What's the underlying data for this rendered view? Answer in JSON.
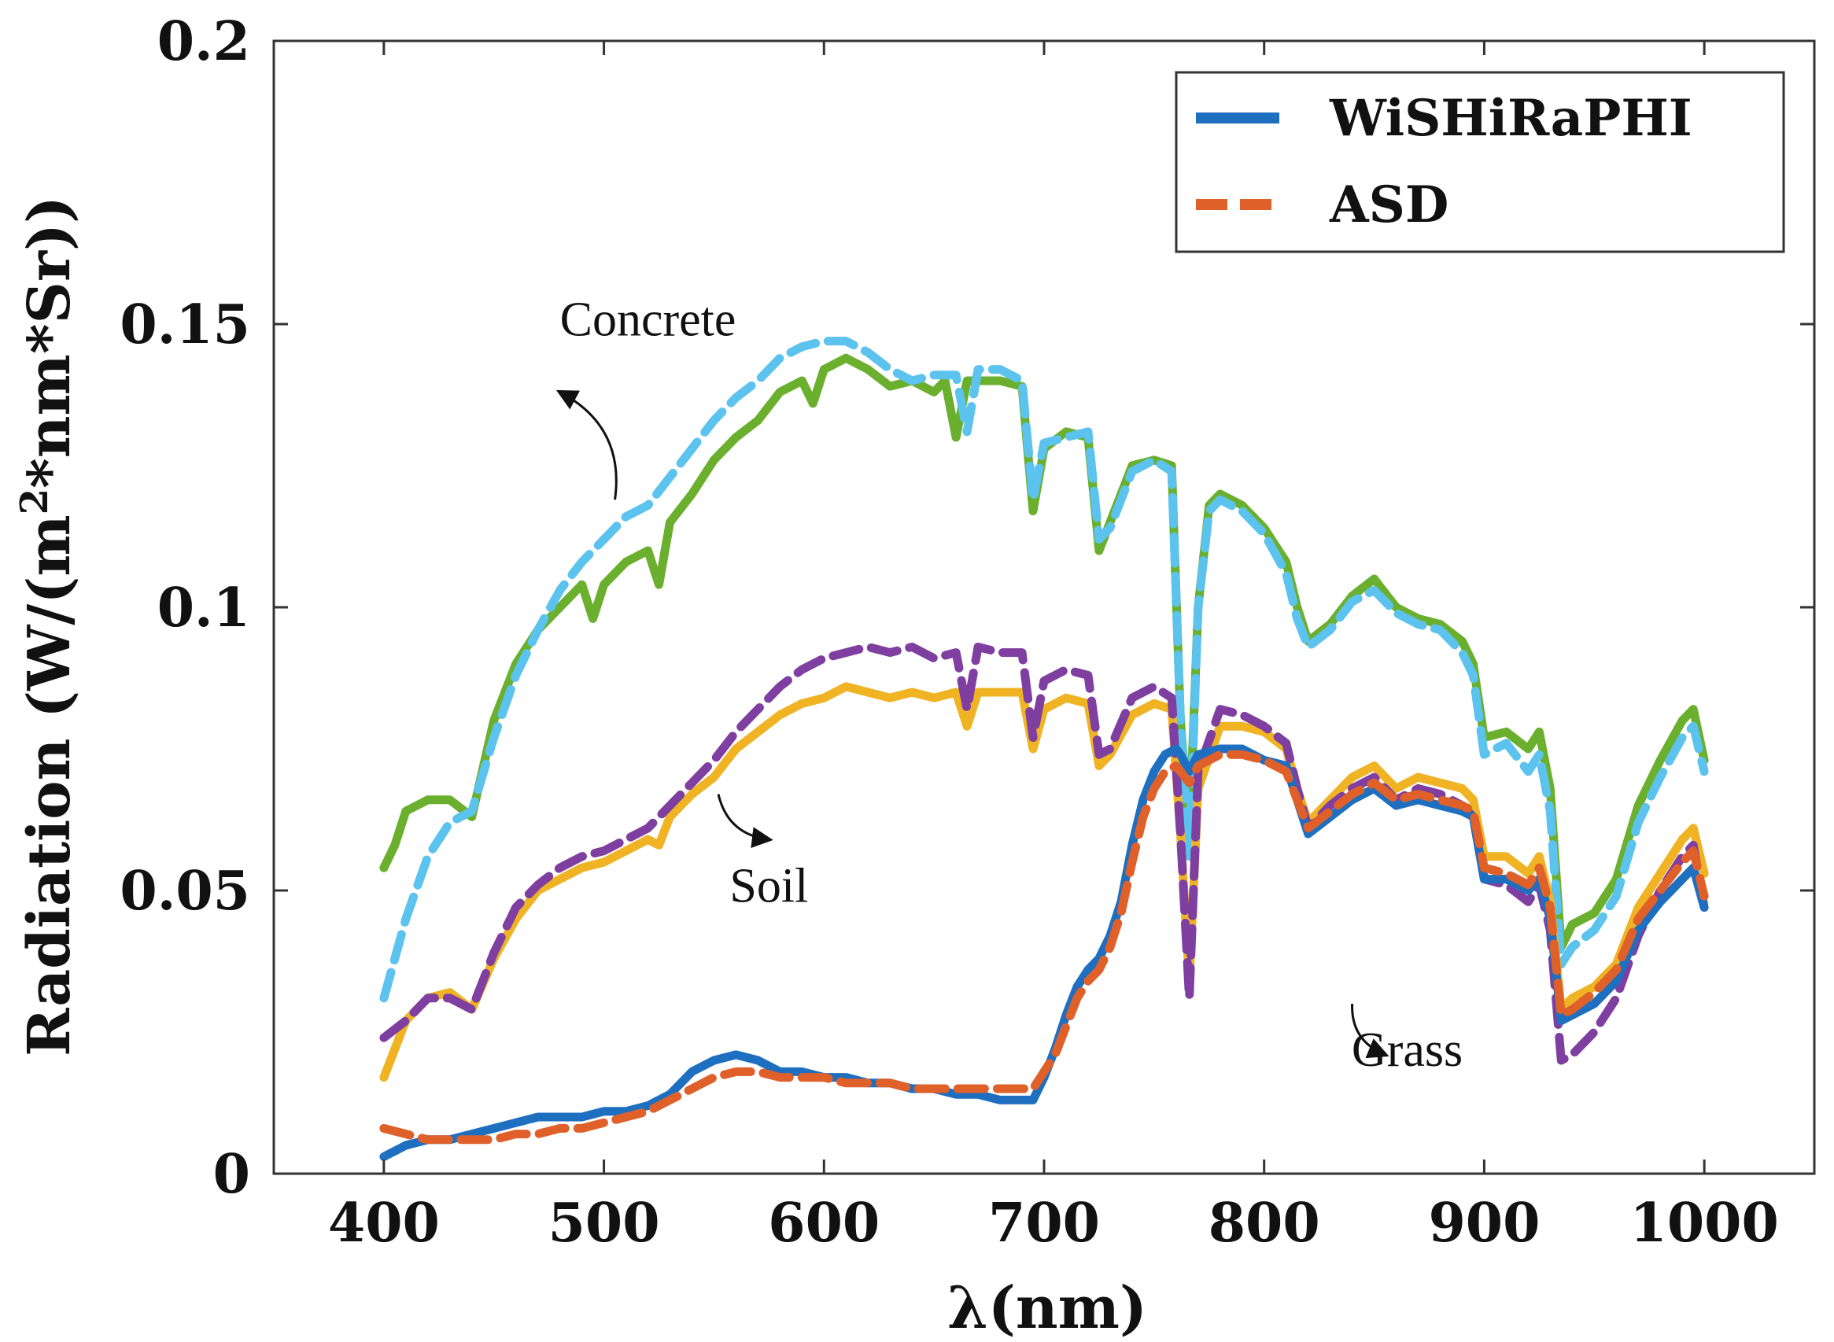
{
  "chart_data": {
    "type": "line",
    "xlabel": "λ(nm)",
    "ylabel_parts": [
      "Radiation (W/(m",
      "2",
      "*nm*Sr))"
    ],
    "xlim": [
      350,
      1050
    ],
    "ylim": [
      0,
      0.2
    ],
    "xticks": [
      400,
      500,
      600,
      700,
      800,
      900,
      1000
    ],
    "yticks": [
      0,
      0.05,
      0.1,
      0.15,
      0.2
    ],
    "ytick_labels": [
      "0",
      "0.05",
      "0.1",
      "0.15",
      "0.2"
    ],
    "grid": false,
    "legend_position": "top-right",
    "legend": [
      {
        "label": "WiSHiRaPHI",
        "style": "solid",
        "color": "#1f6fc0"
      },
      {
        "label": "ASD",
        "style": "dashed",
        "color": "#e0602a"
      }
    ],
    "annotations": [
      {
        "text": "Concrete",
        "x": 520,
        "y": 0.148,
        "arrow_tail": [
          505,
          0.119
        ],
        "arrow_head": [
          480,
          0.138
        ]
      },
      {
        "text": "Soil",
        "x": 575,
        "y": 0.048,
        "arrow_tail": [
          552,
          0.067
        ],
        "arrow_head": [
          575,
          0.059
        ]
      },
      {
        "text": "Grass",
        "x": 865,
        "y": 0.019,
        "arrow_tail": [
          840,
          0.03
        ],
        "arrow_head": [
          855,
          0.021
        ]
      }
    ],
    "series": [
      {
        "name": "WiSHiRaPHI",
        "material": "Concrete",
        "style": "solid",
        "color": "#6ab02e",
        "x": [
          400,
          405,
          410,
          415,
          420,
          430,
          440,
          450,
          460,
          470,
          480,
          490,
          495,
          500,
          510,
          520,
          525,
          530,
          540,
          550,
          560,
          570,
          580,
          590,
          595,
          600,
          610,
          620,
          630,
          640,
          650,
          655,
          660,
          665,
          670,
          680,
          690,
          695,
          700,
          710,
          720,
          725,
          730,
          740,
          750,
          758,
          762,
          766,
          770,
          775,
          780,
          790,
          800,
          810,
          815,
          820,
          830,
          840,
          850,
          860,
          870,
          880,
          890,
          895,
          900,
          910,
          920,
          925,
          930,
          935,
          940,
          950,
          960,
          970,
          980,
          990,
          995,
          1000
        ],
        "y": [
          0.054,
          0.058,
          0.064,
          0.065,
          0.066,
          0.066,
          0.063,
          0.08,
          0.09,
          0.096,
          0.1,
          0.104,
          0.098,
          0.104,
          0.108,
          0.11,
          0.104,
          0.115,
          0.12,
          0.126,
          0.13,
          0.133,
          0.138,
          0.14,
          0.136,
          0.142,
          0.144,
          0.142,
          0.139,
          0.14,
          0.138,
          0.14,
          0.13,
          0.14,
          0.14,
          0.14,
          0.139,
          0.117,
          0.128,
          0.131,
          0.13,
          0.11,
          0.115,
          0.125,
          0.126,
          0.125,
          0.08,
          0.06,
          0.1,
          0.118,
          0.12,
          0.118,
          0.114,
          0.108,
          0.1,
          0.094,
          0.097,
          0.102,
          0.105,
          0.1,
          0.098,
          0.097,
          0.094,
          0.09,
          0.077,
          0.078,
          0.075,
          0.078,
          0.068,
          0.04,
          0.044,
          0.046,
          0.052,
          0.065,
          0.073,
          0.08,
          0.082,
          0.073
        ]
      },
      {
        "name": "ASD",
        "material": "Concrete",
        "style": "dashed",
        "color": "#5bc3ee",
        "x": [
          400,
          410,
          420,
          430,
          440,
          450,
          460,
          470,
          480,
          490,
          500,
          510,
          520,
          530,
          540,
          550,
          560,
          570,
          580,
          590,
          600,
          610,
          620,
          630,
          640,
          650,
          660,
          665,
          670,
          680,
          690,
          695,
          700,
          710,
          720,
          725,
          730,
          740,
          750,
          758,
          762,
          766,
          770,
          775,
          780,
          790,
          800,
          810,
          815,
          820,
          830,
          840,
          850,
          860,
          870,
          880,
          890,
          895,
          900,
          910,
          920,
          925,
          930,
          935,
          940,
          950,
          960,
          970,
          980,
          990,
          995,
          1000
        ],
        "y": [
          0.031,
          0.045,
          0.056,
          0.062,
          0.064,
          0.077,
          0.088,
          0.096,
          0.103,
          0.108,
          0.112,
          0.116,
          0.118,
          0.123,
          0.128,
          0.133,
          0.137,
          0.14,
          0.144,
          0.146,
          0.147,
          0.147,
          0.145,
          0.142,
          0.14,
          0.141,
          0.141,
          0.131,
          0.142,
          0.142,
          0.14,
          0.119,
          0.129,
          0.13,
          0.131,
          0.112,
          0.114,
          0.124,
          0.126,
          0.124,
          0.08,
          0.056,
          0.1,
          0.117,
          0.119,
          0.117,
          0.113,
          0.106,
          0.098,
          0.093,
          0.096,
          0.101,
          0.103,
          0.099,
          0.097,
          0.096,
          0.092,
          0.088,
          0.074,
          0.076,
          0.071,
          0.074,
          0.064,
          0.037,
          0.04,
          0.043,
          0.049,
          0.062,
          0.07,
          0.077,
          0.079,
          0.071
        ]
      },
      {
        "name": "WiSHiRaPHI",
        "material": "Soil",
        "style": "solid",
        "color": "#f0b323",
        "x": [
          400,
          405,
          410,
          420,
          430,
          440,
          450,
          460,
          470,
          480,
          490,
          500,
          510,
          520,
          525,
          530,
          540,
          550,
          560,
          570,
          580,
          590,
          600,
          610,
          620,
          630,
          640,
          650,
          660,
          665,
          670,
          680,
          690,
          695,
          700,
          710,
          720,
          725,
          730,
          740,
          750,
          758,
          762,
          766,
          770,
          780,
          790,
          800,
          810,
          815,
          820,
          830,
          840,
          850,
          860,
          870,
          880,
          890,
          895,
          900,
          910,
          920,
          925,
          930,
          935,
          940,
          950,
          960,
          970,
          980,
          990,
          995,
          1000
        ],
        "y": [
          0.017,
          0.022,
          0.027,
          0.031,
          0.032,
          0.029,
          0.038,
          0.045,
          0.05,
          0.052,
          0.054,
          0.055,
          0.057,
          0.059,
          0.058,
          0.063,
          0.067,
          0.07,
          0.075,
          0.078,
          0.081,
          0.083,
          0.084,
          0.086,
          0.085,
          0.084,
          0.085,
          0.084,
          0.085,
          0.079,
          0.085,
          0.085,
          0.085,
          0.075,
          0.082,
          0.084,
          0.083,
          0.072,
          0.074,
          0.081,
          0.083,
          0.082,
          0.06,
          0.034,
          0.068,
          0.079,
          0.079,
          0.078,
          0.075,
          0.068,
          0.062,
          0.066,
          0.07,
          0.072,
          0.068,
          0.07,
          0.069,
          0.068,
          0.066,
          0.056,
          0.056,
          0.053,
          0.056,
          0.048,
          0.029,
          0.031,
          0.033,
          0.037,
          0.047,
          0.053,
          0.059,
          0.061,
          0.053
        ]
      },
      {
        "name": "ASD",
        "material": "Soil",
        "style": "dashed",
        "color": "#7f3fa0",
        "x": [
          400,
          410,
          420,
          430,
          440,
          450,
          460,
          470,
          480,
          490,
          500,
          510,
          520,
          530,
          540,
          550,
          560,
          570,
          580,
          590,
          600,
          610,
          620,
          630,
          640,
          650,
          660,
          665,
          670,
          680,
          690,
          695,
          700,
          710,
          720,
          725,
          730,
          740,
          750,
          758,
          762,
          766,
          770,
          780,
          790,
          800,
          810,
          815,
          820,
          830,
          840,
          850,
          860,
          870,
          880,
          890,
          895,
          900,
          910,
          920,
          925,
          930,
          935,
          940,
          950,
          960,
          970,
          980,
          990,
          995,
          1000
        ],
        "y": [
          0.024,
          0.027,
          0.031,
          0.031,
          0.029,
          0.039,
          0.047,
          0.051,
          0.054,
          0.056,
          0.057,
          0.059,
          0.061,
          0.065,
          0.069,
          0.073,
          0.078,
          0.082,
          0.086,
          0.089,
          0.091,
          0.092,
          0.093,
          0.092,
          0.093,
          0.091,
          0.092,
          0.082,
          0.093,
          0.092,
          0.092,
          0.077,
          0.087,
          0.089,
          0.088,
          0.074,
          0.075,
          0.084,
          0.086,
          0.084,
          0.06,
          0.031,
          0.071,
          0.082,
          0.081,
          0.079,
          0.076,
          0.068,
          0.061,
          0.065,
          0.068,
          0.07,
          0.066,
          0.068,
          0.067,
          0.065,
          0.063,
          0.052,
          0.051,
          0.048,
          0.051,
          0.043,
          0.02,
          0.021,
          0.025,
          0.031,
          0.042,
          0.05,
          0.056,
          0.058,
          0.047
        ]
      },
      {
        "name": "WiSHiRaPHI",
        "material": "Grass",
        "style": "solid",
        "color": "#1f6fc0",
        "x": [
          400,
          410,
          420,
          430,
          440,
          450,
          460,
          470,
          480,
          490,
          500,
          510,
          520,
          530,
          540,
          550,
          560,
          570,
          580,
          590,
          600,
          610,
          620,
          630,
          640,
          650,
          660,
          670,
          680,
          690,
          695,
          700,
          705,
          710,
          715,
          720,
          725,
          730,
          735,
          740,
          745,
          750,
          755,
          760,
          762,
          766,
          770,
          780,
          790,
          800,
          810,
          815,
          820,
          830,
          840,
          850,
          860,
          870,
          880,
          890,
          895,
          900,
          910,
          920,
          925,
          930,
          935,
          940,
          950,
          960,
          970,
          980,
          990,
          995,
          1000
        ],
        "y": [
          0.003,
          0.005,
          0.006,
          0.006,
          0.007,
          0.008,
          0.009,
          0.01,
          0.01,
          0.01,
          0.011,
          0.011,
          0.012,
          0.014,
          0.018,
          0.02,
          0.021,
          0.02,
          0.018,
          0.018,
          0.017,
          0.017,
          0.016,
          0.016,
          0.015,
          0.015,
          0.014,
          0.014,
          0.013,
          0.013,
          0.013,
          0.017,
          0.022,
          0.028,
          0.033,
          0.036,
          0.038,
          0.042,
          0.048,
          0.058,
          0.066,
          0.071,
          0.074,
          0.075,
          0.074,
          0.071,
          0.074,
          0.075,
          0.075,
          0.073,
          0.072,
          0.066,
          0.06,
          0.063,
          0.066,
          0.068,
          0.065,
          0.066,
          0.065,
          0.064,
          0.063,
          0.052,
          0.052,
          0.05,
          0.052,
          0.045,
          0.027,
          0.028,
          0.03,
          0.034,
          0.043,
          0.048,
          0.052,
          0.054,
          0.047
        ]
      },
      {
        "name": "ASD",
        "material": "Grass",
        "style": "dashed",
        "color": "#e0602a",
        "x": [
          400,
          410,
          420,
          430,
          440,
          450,
          460,
          470,
          480,
          490,
          500,
          510,
          520,
          530,
          540,
          550,
          560,
          570,
          580,
          590,
          600,
          610,
          620,
          630,
          640,
          650,
          660,
          670,
          680,
          690,
          695,
          700,
          705,
          710,
          715,
          720,
          725,
          730,
          735,
          740,
          745,
          750,
          755,
          760,
          762,
          766,
          770,
          780,
          790,
          800,
          810,
          815,
          820,
          830,
          840,
          850,
          860,
          870,
          880,
          890,
          895,
          900,
          910,
          920,
          925,
          930,
          935,
          940,
          950,
          960,
          970,
          980,
          990,
          995,
          1000
        ],
        "y": [
          0.008,
          0.007,
          0.006,
          0.006,
          0.006,
          0.006,
          0.007,
          0.007,
          0.008,
          0.008,
          0.009,
          0.01,
          0.011,
          0.013,
          0.015,
          0.017,
          0.018,
          0.018,
          0.017,
          0.017,
          0.017,
          0.016,
          0.016,
          0.016,
          0.015,
          0.015,
          0.015,
          0.015,
          0.015,
          0.015,
          0.015,
          0.018,
          0.021,
          0.026,
          0.031,
          0.034,
          0.036,
          0.04,
          0.046,
          0.055,
          0.063,
          0.068,
          0.071,
          0.072,
          0.071,
          0.069,
          0.072,
          0.074,
          0.074,
          0.073,
          0.071,
          0.066,
          0.061,
          0.064,
          0.067,
          0.069,
          0.066,
          0.067,
          0.066,
          0.065,
          0.064,
          0.054,
          0.053,
          0.051,
          0.054,
          0.047,
          0.028,
          0.029,
          0.032,
          0.036,
          0.045,
          0.05,
          0.055,
          0.057,
          0.049
        ]
      }
    ]
  }
}
